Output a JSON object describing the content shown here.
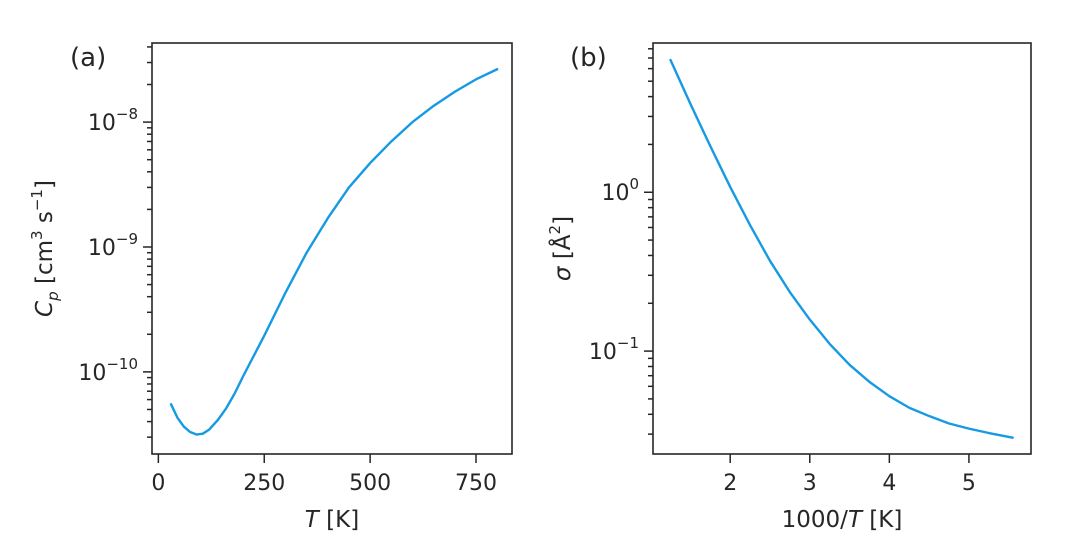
{
  "chart_data": [
    {
      "type": "line",
      "panel_label": "(a)",
      "xlabel": {
        "var": "T",
        "unit": " [K]"
      },
      "ylabel": {
        "var": "C",
        "sub": "p",
        "unit": " [cm",
        "exp1": "3",
        "mid": " s",
        "exp2": "−1",
        "close": "]"
      },
      "xscale": "linear",
      "yscale": "log",
      "xlim": [
        -15,
        835
      ],
      "ylim": [
        2.2e-11,
        4.3e-08
      ],
      "xticks": [
        0,
        250,
        500,
        750
      ],
      "xtick_labels": [
        "0",
        "250",
        "500",
        "750"
      ],
      "yticks": [
        1e-10,
        1e-09,
        1e-08
      ],
      "ytick_labels": [
        {
          "base": "10",
          "exp": "−10"
        },
        {
          "base": "10",
          "exp": "−9"
        },
        {
          "base": "10",
          "exp": "−8"
        }
      ],
      "series": [
        {
          "color": "#159ae3",
          "x": [
            30,
            45,
            60,
            75,
            90,
            105,
            120,
            140,
            160,
            180,
            200,
            250,
            300,
            350,
            400,
            450,
            500,
            550,
            600,
            650,
            700,
            750,
            800
          ],
          "y": [
            5.5e-11,
            4.3e-11,
            3.65e-11,
            3.3e-11,
            3.15e-11,
            3.2e-11,
            3.45e-11,
            4.1e-11,
            5.1e-11,
            6.7e-11,
            9.2e-11,
            1.95e-10,
            4.3e-10,
            9e-10,
            1.7e-09,
            3e-09,
            4.7e-09,
            7e-09,
            1e-08,
            1.35e-08,
            1.75e-08,
            2.2e-08,
            2.65e-08
          ]
        }
      ]
    },
    {
      "type": "line",
      "panel_label": "(b)",
      "xlabel": {
        "pre": "1000/",
        "var": "T",
        "unit": " [K]"
      },
      "ylabel": {
        "var": "σ",
        "unit": " [Å",
        "exp": "2",
        "close": "]"
      },
      "xscale": "linear",
      "yscale": "log",
      "xlim": [
        1.03,
        5.78
      ],
      "ylim": [
        0.0225,
        8.7
      ],
      "xticks": [
        2,
        3,
        4,
        5
      ],
      "xtick_labels": [
        "2",
        "3",
        "4",
        "5"
      ],
      "yticks": [
        0.1,
        1
      ],
      "ytick_labels": [
        {
          "base": "10",
          "exp": "−1"
        },
        {
          "base": "10",
          "exp": "0"
        }
      ],
      "series": [
        {
          "color": "#159ae3",
          "x": [
            1.25,
            1.5,
            1.75,
            2.0,
            2.25,
            2.5,
            2.75,
            3.0,
            3.25,
            3.5,
            3.75,
            4.0,
            4.25,
            4.5,
            4.75,
            5.0,
            5.25,
            5.55
          ],
          "y": [
            6.8,
            3.6,
            1.95,
            1.08,
            0.62,
            0.37,
            0.235,
            0.158,
            0.111,
            0.082,
            0.064,
            0.052,
            0.044,
            0.039,
            0.035,
            0.0325,
            0.0305,
            0.0285
          ]
        }
      ]
    }
  ]
}
